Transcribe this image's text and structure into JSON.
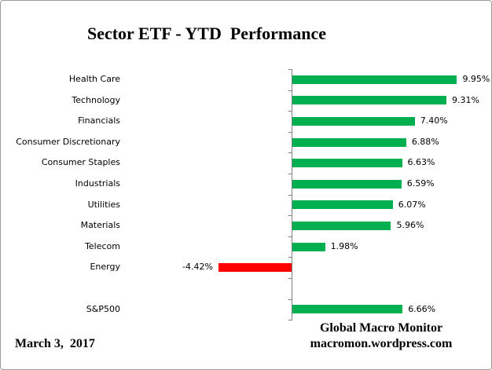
{
  "title": "Sector ETF - YTD  Performance",
  "footer": {
    "date": "March 3,  2017",
    "brand_line1": "Global Macro Monitor",
    "brand_line2": "macromon.wordpress.com"
  },
  "colors": {
    "positive_bar": "#00B050",
    "negative_bar": "#FF0000",
    "axis": "#808080",
    "text": "#000000"
  },
  "chart_data": {
    "type": "bar",
    "orientation": "horizontal",
    "title": "Sector ETF - YTD  Performance",
    "categories": [
      "Health Care",
      "Technology",
      "Financials",
      "Consumer Discretionary",
      "Consumer Staples",
      "Industrials",
      "Utilities",
      "Materials",
      "Telecom",
      "Energy",
      "",
      "S&P500"
    ],
    "values": [
      9.95,
      9.31,
      7.4,
      6.88,
      6.63,
      6.59,
      6.07,
      5.96,
      1.98,
      -4.42,
      null,
      6.66
    ],
    "value_labels": [
      "9.95%",
      "9.31%",
      "7.40%",
      "6.88%",
      "6.63%",
      "6.59%",
      "6.07%",
      "5.96%",
      "1.98%",
      "-4.42%",
      "",
      "6.66%"
    ],
    "xlabel": "",
    "ylabel": "",
    "xlim": [
      -10.2,
      11.9
    ],
    "grid": false,
    "legend": false,
    "color_rule": "positive bars green, negative bars red"
  }
}
